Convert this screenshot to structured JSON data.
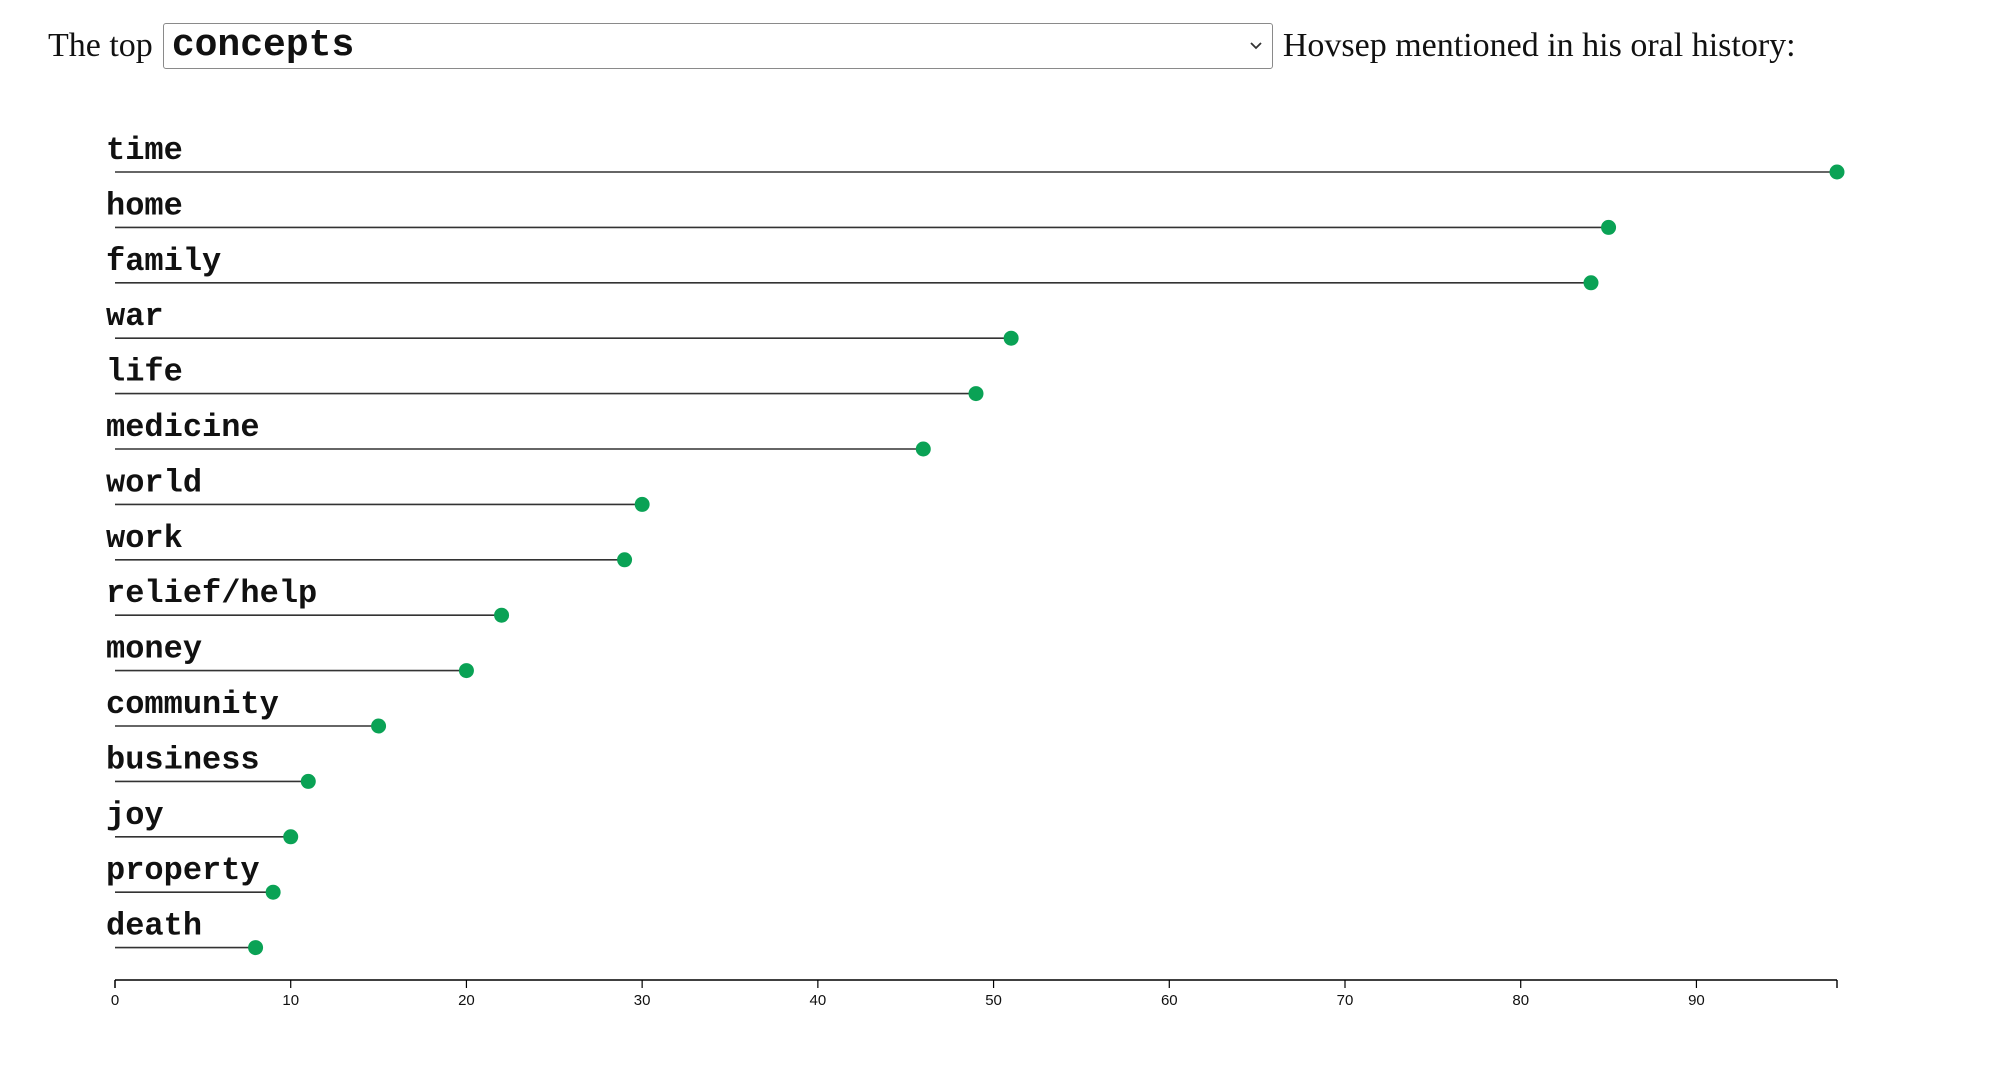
{
  "header": {
    "prefix": "The top",
    "selected": "concepts",
    "suffix": "Hovsep mentioned in his oral history:"
  },
  "colors": {
    "dot": "#0aa255",
    "stem": "#333333",
    "axis": "#000000"
  },
  "chart_data": {
    "type": "lollipop",
    "title": "",
    "xlabel": "",
    "ylabel": "",
    "categories": [
      "time",
      "home",
      "family",
      "war",
      "life",
      "medicine",
      "world",
      "work",
      "relief/help",
      "money",
      "community",
      "business",
      "joy",
      "property",
      "death"
    ],
    "values": [
      98,
      85,
      84,
      51,
      49,
      46,
      30,
      29,
      22,
      20,
      15,
      11,
      10,
      9,
      8
    ],
    "xlim": [
      0,
      98
    ],
    "xticks": [
      0,
      10,
      20,
      30,
      40,
      50,
      60,
      70,
      80,
      90
    ],
    "grid": false,
    "legend": "none"
  }
}
